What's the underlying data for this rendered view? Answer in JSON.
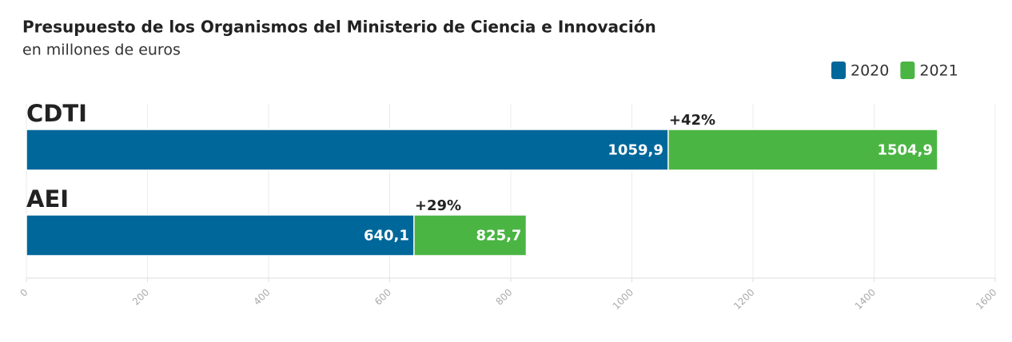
{
  "chart_data": {
    "type": "bar",
    "orientation": "horizontal",
    "title": "Presupuesto de los Organismos del Ministerio de Ciencia e Innovación",
    "subtitle": "en millones de euros",
    "categories": [
      "CDTI",
      "AEI"
    ],
    "series": [
      {
        "name": "2020",
        "color": "#00679a",
        "values": [
          1059.9,
          640.1
        ],
        "value_labels": [
          "1059,9",
          "640,1"
        ]
      },
      {
        "name": "2021",
        "color": "#4bb543",
        "values": [
          1504.9,
          825.7
        ],
        "value_labels": [
          "1504,9",
          "825,7"
        ]
      }
    ],
    "changes": [
      "+42%",
      "+29%"
    ],
    "xlim": [
      0,
      1600
    ],
    "xticks": [
      0,
      200,
      400,
      600,
      800,
      1000,
      1200,
      1400,
      1600
    ],
    "grid": true,
    "legend": "top-right"
  }
}
